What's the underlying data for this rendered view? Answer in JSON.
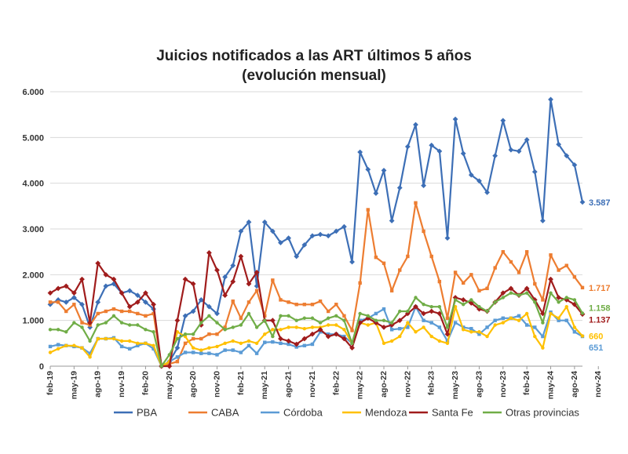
{
  "chart_data": {
    "type": "line",
    "title_line1": "Juicios notificados a las ART últimos 5 años",
    "title_line2": "(evolución mensual)",
    "ylim": [
      0,
      6000
    ],
    "yticks": [
      "0",
      "1.000",
      "2.000",
      "3.000",
      "4.000",
      "5.000",
      "6.000"
    ],
    "ytick_values": [
      0,
      1000,
      2000,
      3000,
      4000,
      5000,
      6000
    ],
    "xticks": [
      "feb-19",
      "may-19",
      "ago-19",
      "nov-19",
      "feb-20",
      "may-20",
      "ago-20",
      "nov-20",
      "feb-21",
      "may-21",
      "ago-21",
      "nov-21",
      "feb-22",
      "may-22",
      "ago-22",
      "nov-22",
      "feb-23",
      "may-23",
      "ago-23",
      "nov-23",
      "feb-24",
      "may-24",
      "ago-24",
      "nov-24"
    ],
    "x_start": "2019-02",
    "x_end": "2024-12",
    "grid": true,
    "legend_position": "bottom",
    "series": [
      {
        "name": "PBA",
        "color": "#3d6fb6",
        "end_label": "3.587",
        "values": [
          1350,
          1450,
          1400,
          1500,
          1350,
          850,
          1400,
          1750,
          1800,
          1600,
          1650,
          1550,
          1400,
          1250,
          0,
          100,
          400,
          1100,
          1200,
          1450,
          1300,
          1150,
          1950,
          2200,
          2950,
          3150,
          1750,
          3150,
          2950,
          2700,
          2800,
          2400,
          2650,
          2850,
          2880,
          2850,
          2950,
          3050,
          2280,
          4680,
          4300,
          3780,
          4280,
          3180,
          3900,
          4800,
          5280,
          3950,
          4830,
          4700,
          2800,
          5400,
          4650,
          4180,
          4050,
          3800,
          4600,
          5370,
          4730,
          4700,
          4950,
          4250,
          3180,
          5830,
          4850,
          4600,
          4400,
          3587
        ]
      },
      {
        "name": "CABA",
        "color": "#ed7d31",
        "end_label": "1.717",
        "values": [
          1400,
          1400,
          1200,
          1350,
          950,
          900,
          1150,
          1200,
          1250,
          1200,
          1200,
          1150,
          1100,
          1150,
          0,
          50,
          100,
          500,
          600,
          600,
          700,
          700,
          850,
          1420,
          1050,
          1400,
          1650,
          1100,
          1880,
          1450,
          1400,
          1350,
          1350,
          1350,
          1420,
          1200,
          1350,
          1100,
          780,
          1820,
          3420,
          2380,
          2250,
          1650,
          2100,
          2400,
          3570,
          2950,
          2400,
          1850,
          1050,
          2050,
          1820,
          2000,
          1650,
          1700,
          2150,
          2500,
          2280,
          2050,
          2500,
          1800,
          1450,
          2430,
          2100,
          2200,
          1950,
          1717
        ]
      },
      {
        "name": "Córdoba",
        "color": "#5b9bd5",
        "end_label": "651",
        "values": [
          430,
          470,
          450,
          430,
          400,
          280,
          600,
          600,
          620,
          430,
          380,
          450,
          500,
          380,
          0,
          100,
          200,
          300,
          300,
          280,
          280,
          250,
          350,
          350,
          300,
          450,
          280,
          520,
          530,
          500,
          480,
          420,
          450,
          480,
          750,
          700,
          700,
          650,
          500,
          1000,
          1050,
          1150,
          1250,
          800,
          820,
          850,
          1300,
          1000,
          950,
          850,
          550,
          950,
          850,
          820,
          700,
          850,
          1000,
          1050,
          1050,
          1100,
          900,
          850,
          650,
          1180,
          1000,
          1000,
          750,
          651
        ]
      },
      {
        "name": "Mendoza",
        "color": "#ffc000",
        "end_label": "660",
        "values": [
          300,
          380,
          450,
          450,
          400,
          200,
          600,
          600,
          600,
          550,
          550,
          500,
          500,
          450,
          0,
          100,
          750,
          650,
          400,
          350,
          400,
          430,
          500,
          550,
          500,
          550,
          500,
          700,
          800,
          800,
          850,
          850,
          820,
          850,
          850,
          900,
          900,
          800,
          500,
          950,
          900,
          950,
          500,
          550,
          650,
          950,
          750,
          850,
          650,
          550,
          500,
          1300,
          800,
          750,
          750,
          650,
          900,
          950,
          1050,
          1000,
          1150,
          650,
          400,
          1150,
          1050,
          1300,
          850,
          660
        ]
      },
      {
        "name": "Santa Fe",
        "color": "#a01c1c",
        "end_label": "1.137",
        "values": [
          1600,
          1700,
          1750,
          1600,
          1900,
          950,
          2250,
          2000,
          1900,
          1600,
          1300,
          1400,
          1600,
          1350,
          0,
          0,
          1000,
          1900,
          1800,
          900,
          2480,
          2100,
          1550,
          1850,
          2400,
          1800,
          2050,
          1000,
          1000,
          600,
          550,
          480,
          600,
          700,
          800,
          650,
          700,
          600,
          400,
          950,
          1050,
          950,
          850,
          900,
          1000,
          1150,
          1300,
          1150,
          1200,
          1150,
          700,
          1500,
          1450,
          1380,
          1250,
          1200,
          1400,
          1600,
          1700,
          1550,
          1700,
          1450,
          1150,
          1900,
          1500,
          1450,
          1350,
          1137
        ]
      },
      {
        "name": "Otras provincias",
        "color": "#70ad47",
        "end_label": "1.158",
        "values": [
          800,
          800,
          750,
          950,
          850,
          550,
          900,
          950,
          1100,
          950,
          900,
          900,
          800,
          750,
          0,
          250,
          600,
          700,
          700,
          950,
          1100,
          950,
          800,
          850,
          900,
          1150,
          850,
          1000,
          650,
          1100,
          1100,
          1000,
          1050,
          1050,
          950,
          1050,
          1100,
          1000,
          500,
          1150,
          1100,
          1000,
          1000,
          950,
          1200,
          1200,
          1500,
          1350,
          1300,
          1300,
          850,
          1450,
          1350,
          1450,
          1300,
          1200,
          1400,
          1500,
          1600,
          1550,
          1600,
          1400,
          950,
          1600,
          1400,
          1500,
          1450,
          1158
        ]
      }
    ]
  }
}
